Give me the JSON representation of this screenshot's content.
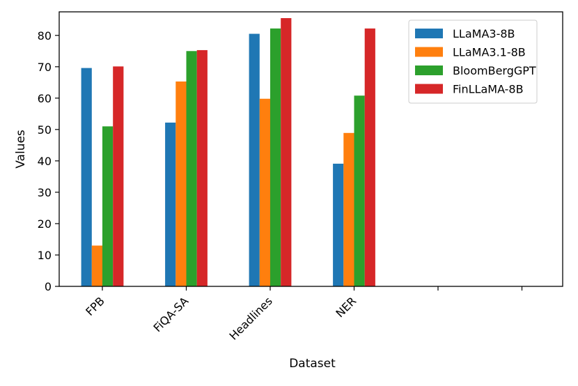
{
  "chart_data": {
    "type": "bar",
    "title": "",
    "xlabel": "Dataset",
    "ylabel": "Values",
    "categories": [
      "FPB",
      "FiQA-SA",
      "Headlines",
      "NER",
      "",
      ""
    ],
    "ylim": [
      0,
      87.5
    ],
    "yticks": [
      0,
      10,
      20,
      30,
      40,
      50,
      60,
      70,
      80
    ],
    "legend_position": "top-right",
    "grid": false,
    "series": [
      {
        "name": "LLaMA3-8B",
        "color": "#1f77b4",
        "values": [
          69.6,
          52.2,
          80.5,
          39.1,
          null,
          null
        ]
      },
      {
        "name": "LLaMA3.1-8B",
        "color": "#ff7f0e",
        "values": [
          13.0,
          65.3,
          59.8,
          48.9,
          null,
          null
        ]
      },
      {
        "name": "BloomBergGPT",
        "color": "#2ca02c",
        "values": [
          51.0,
          75.0,
          82.2,
          60.8,
          null,
          null
        ]
      },
      {
        "name": "FinLLaMA-8B",
        "color": "#d62728",
        "values": [
          70.1,
          75.3,
          85.5,
          82.2,
          null,
          null
        ]
      }
    ]
  }
}
